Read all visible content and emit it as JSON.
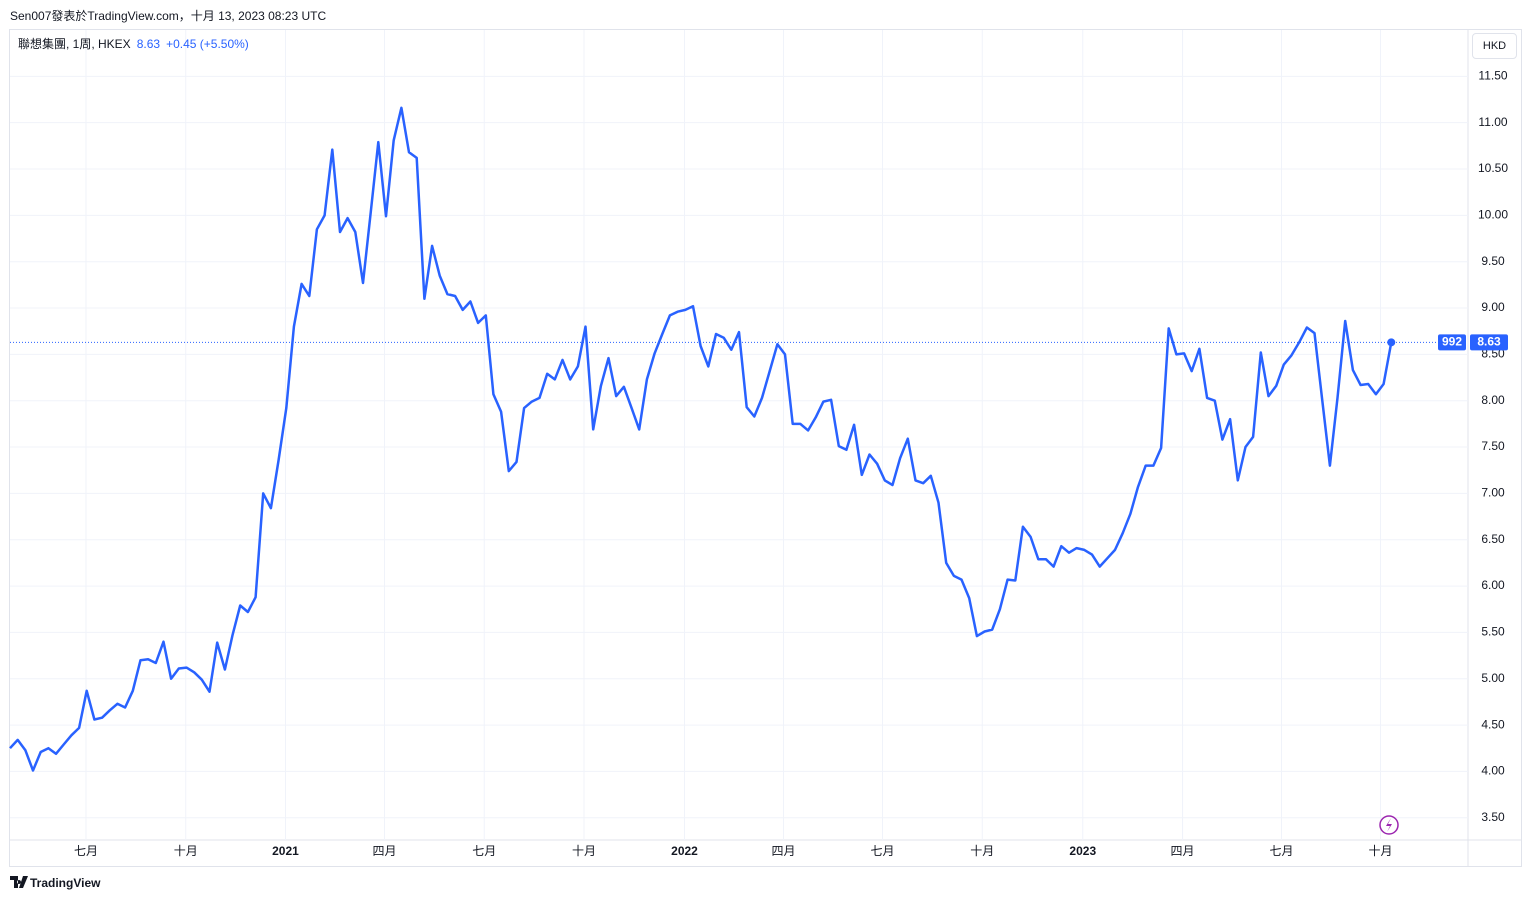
{
  "header": {
    "credit": "Sen007發表於TradingView.com，十月 13, 2023 08:23 UTC"
  },
  "footer": {
    "brand": "TradingView"
  },
  "chart_data": {
    "type": "line",
    "title": "聯想集團, 1周, HKEX",
    "change": "+0.45 (+5.50%)",
    "currency": "HKD",
    "badge": "992",
    "color": "#2962ff",
    "grid": true,
    "values": [
      4.25,
      4.34,
      4.23,
      4.01,
      4.21,
      4.25,
      4.19,
      4.29,
      4.39,
      4.47,
      4.87,
      4.56,
      4.58,
      4.66,
      4.73,
      4.69,
      4.87,
      5.2,
      5.21,
      5.17,
      5.4,
      5.0,
      5.11,
      5.12,
      5.07,
      4.99,
      4.86,
      5.39,
      5.1,
      5.47,
      5.79,
      5.72,
      5.88,
      7.0,
      6.84,
      7.36,
      7.92,
      8.8,
      9.26,
      9.13,
      9.85,
      10.0,
      10.71,
      9.82,
      9.97,
      9.82,
      9.27,
      10.03,
      10.79,
      9.99,
      10.81,
      11.16,
      10.68,
      10.62,
      9.1,
      9.67,
      9.35,
      9.15,
      9.13,
      8.98,
      9.07,
      8.84,
      8.92,
      8.07,
      7.88,
      7.24,
      7.34,
      7.92,
      7.99,
      8.03,
      8.29,
      8.23,
      8.44,
      8.23,
      8.37,
      8.8,
      7.69,
      8.16,
      8.46,
      8.05,
      8.15,
      7.92,
      7.69,
      8.23,
      8.51,
      8.72,
      8.92,
      8.96,
      8.98,
      9.02,
      8.59,
      8.37,
      8.72,
      8.68,
      8.55,
      8.74,
      7.93,
      7.83,
      8.03,
      8.32,
      8.61,
      8.5,
      7.75,
      7.75,
      7.68,
      7.82,
      7.99,
      8.01,
      7.51,
      7.47,
      7.74,
      7.2,
      7.42,
      7.32,
      7.14,
      7.09,
      7.38,
      7.59,
      7.14,
      7.11,
      7.19,
      6.9,
      6.25,
      6.11,
      6.07,
      5.87,
      5.46,
      5.51,
      5.53,
      5.75,
      6.07,
      6.06,
      6.64,
      6.53,
      6.29,
      6.29,
      6.21,
      6.43,
      6.36,
      6.41,
      6.39,
      6.34,
      6.21,
      6.3,
      6.39,
      6.57,
      6.78,
      7.07,
      7.3,
      7.3,
      7.49,
      8.78,
      8.5,
      8.51,
      8.32,
      8.56,
      8.03,
      8.0,
      7.58,
      7.8,
      7.14,
      7.5,
      7.61,
      8.52,
      8.05,
      8.16,
      8.39,
      8.49,
      8.63,
      8.79,
      8.73,
      8.01,
      7.3,
      8.03,
      8.86,
      8.33,
      8.17,
      8.18,
      8.07,
      8.18,
      8.63
    ],
    "xlim": [
      0,
      190
    ],
    "xticks": [
      {
        "value": 9.9,
        "label": "七月"
      },
      {
        "value": 22.9,
        "label": "十月"
      },
      {
        "value": 35.9,
        "label": "2021"
      },
      {
        "value": 48.8,
        "label": "四月"
      },
      {
        "value": 61.8,
        "label": "七月"
      },
      {
        "value": 74.8,
        "label": "十月"
      },
      {
        "value": 87.9,
        "label": "2022"
      },
      {
        "value": 100.8,
        "label": "四月"
      },
      {
        "value": 113.7,
        "label": "七月"
      },
      {
        "value": 126.7,
        "label": "十月"
      },
      {
        "value": 139.8,
        "label": "2023"
      },
      {
        "value": 152.8,
        "label": "四月"
      },
      {
        "value": 165.7,
        "label": "七月"
      },
      {
        "value": 178.6,
        "label": "十月"
      }
    ],
    "ylim": [
      3.26,
      12.0
    ],
    "yticks": [
      {
        "value": 3.5,
        "label": "3.50"
      },
      {
        "value": 4,
        "label": "4.00"
      },
      {
        "value": 4.5,
        "label": "4.50"
      },
      {
        "value": 5,
        "label": "5.00"
      },
      {
        "value": 5.5,
        "label": "5.50"
      },
      {
        "value": 6,
        "label": "6.00"
      },
      {
        "value": 6.5,
        "label": "6.50"
      },
      {
        "value": 7,
        "label": "7.00"
      },
      {
        "value": 7.5,
        "label": "7.50"
      },
      {
        "value": 8,
        "label": "8.00"
      },
      {
        "value": 8.5,
        "label": "8.50"
      },
      {
        "value": 9,
        "label": "9.00"
      },
      {
        "value": 9.5,
        "label": "9.50"
      },
      {
        "value": 10,
        "label": "10.00"
      },
      {
        "value": 10.5,
        "label": "10.50"
      },
      {
        "value": 11,
        "label": "11.00"
      },
      {
        "value": 11.5,
        "label": "11.50"
      }
    ]
  }
}
